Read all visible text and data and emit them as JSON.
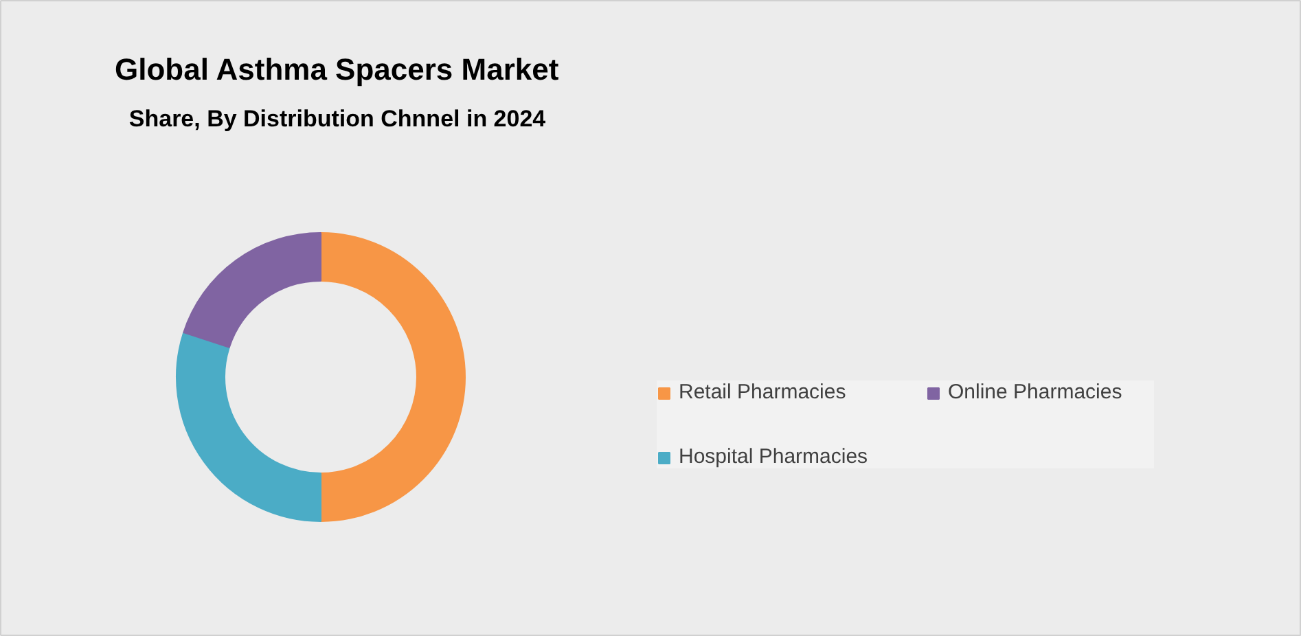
{
  "chart_data": {
    "type": "donut",
    "title": "Global Asthma Spacers Market",
    "subtitle": "Share, By Distribution Chnnel in 2024",
    "categories": [
      "Retail Pharmacies",
      "Hospital Pharmacies",
      "Online Pharmacies"
    ],
    "values": [
      50,
      30,
      20
    ],
    "colors": [
      "#f79646",
      "#4bacc6",
      "#8064a2"
    ],
    "legend": "right"
  }
}
